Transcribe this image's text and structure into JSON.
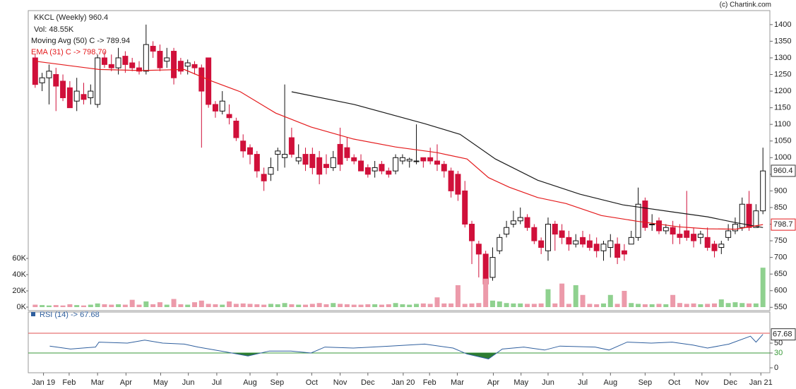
{
  "chart_data": [
    {
      "type": "candlestick",
      "title": "KKCL (Weekly) 960.4",
      "source": "(c) Chartink.com",
      "up_color": "#ffffff",
      "down_color": "#d0103a",
      "open": [
        1300,
        1225,
        1240,
        1250,
        1230,
        1210,
        1170,
        1190,
        1180,
        1160,
        1300,
        1280,
        1270,
        1305,
        1285,
        1270,
        1260,
        1335,
        1320,
        1290,
        1320,
        1290,
        1275,
        1280,
        1270,
        1300,
        1160,
        1140,
        1130,
        1110,
        1050,
        1030,
        1010,
        950,
        950,
        1010,
        1000,
        1060,
        990,
        1010,
        1010,
        1000,
        980,
        970,
        1040,
        1030,
        1000,
        990,
        970,
        960,
        980,
        960,
        960,
        990,
        990,
        990,
        1000,
        1000,
        990,
        980,
        960,
        950,
        900,
        800,
        740,
        710,
        640,
        720,
        770,
        800,
        810,
        820,
        790,
        750,
        720,
        800,
        780,
        760,
        740,
        760,
        750,
        740,
        720,
        730,
        740,
        720,
        740,
        760,
        870,
        800,
        810,
        780,
        790,
        770,
        780,
        770,
        760,
        760,
        740,
        730,
        760,
        780,
        790,
        860,
        790,
        840
      ],
      "high": [
        1310,
        1255,
        1280,
        1270,
        1250,
        1230,
        1240,
        1225,
        1220,
        1310,
        1320,
        1310,
        1330,
        1320,
        1300,
        1290,
        1400,
        1350,
        1340,
        1330,
        1330,
        1300,
        1295,
        1290,
        1280,
        1300,
        1170,
        1200,
        1160,
        1120,
        1070,
        1040,
        1020,
        970,
        1000,
        1030,
        1220,
        1090,
        1040,
        1030,
        1030,
        1020,
        1010,
        1020,
        1090,
        1060,
        1010,
        1010,
        980,
        990,
        990,
        970,
        1010,
        1010,
        1000,
        1100,
        1000,
        1030,
        1040,
        990,
        970,
        960,
        930,
        810,
        750,
        720,
        730,
        770,
        810,
        840,
        850,
        830,
        800,
        760,
        820,
        810,
        800,
        780,
        770,
        780,
        770,
        760,
        750,
        770,
        760,
        740,
        780,
        910,
        880,
        830,
        820,
        800,
        810,
        800,
        900,
        790,
        780,
        790,
        750,
        750,
        800,
        820,
        880,
        900,
        860,
        1030
      ],
      "low": [
        1210,
        1200,
        1160,
        1140,
        1170,
        1150,
        1140,
        1160,
        1160,
        1150,
        1270,
        1260,
        1250,
        1255,
        1260,
        1250,
        1250,
        1300,
        1260,
        1270,
        1220,
        1250,
        1250,
        1250,
        1030,
        1150,
        1120,
        1130,
        1100,
        1050,
        1000,
        980,
        940,
        900,
        930,
        960,
        970,
        1000,
        980,
        960,
        950,
        920,
        950,
        960,
        960,
        990,
        980,
        960,
        940,
        940,
        950,
        940,
        950,
        980,
        970,
        980,
        970,
        980,
        960,
        940,
        880,
        870,
        790,
        680,
        640,
        560,
        630,
        710,
        760,
        790,
        800,
        780,
        740,
        710,
        690,
        720,
        740,
        720,
        730,
        730,
        720,
        700,
        690,
        700,
        680,
        690,
        740,
        750,
        780,
        780,
        770,
        770,
        740,
        740,
        750,
        730,
        740,
        720,
        700,
        710,
        750,
        770,
        780,
        780,
        790,
        830
      ],
      "close": [
        1220,
        1240,
        1260,
        1215,
        1180,
        1150,
        1200,
        1175,
        1200,
        1300,
        1280,
        1270,
        1300,
        1280,
        1270,
        1260,
        1340,
        1320,
        1270,
        1300,
        1240,
        1260,
        1285,
        1270,
        1200,
        1160,
        1140,
        1170,
        1120,
        1060,
        1020,
        1010,
        960,
        930,
        970,
        1020,
        1010,
        1010,
        1000,
        980,
        970,
        950,
        970,
        1000,
        980,
        1000,
        990,
        960,
        950,
        970,
        960,
        950,
        1000,
        1000,
        995,
        990,
        990,
        990,
        980,
        960,
        900,
        890,
        800,
        750,
        710,
        620,
        700,
        760,
        790,
        810,
        820,
        790,
        750,
        730,
        800,
        770,
        760,
        740,
        750,
        740,
        730,
        720,
        740,
        750,
        700,
        710,
        760,
        860,
        790,
        800,
        780,
        790,
        770,
        760,
        760,
        750,
        770,
        730,
        720,
        740,
        780,
        800,
        860,
        790,
        840,
        960
      ],
      "xlim": [
        -1,
        106
      ],
      "ylim": [
        540,
        1440
      ],
      "yticks": [
        550,
        600,
        650,
        700,
        750,
        800,
        850,
        900,
        950,
        1000,
        1050,
        1100,
        1150,
        1200,
        1250,
        1300,
        1350,
        1400
      ],
      "last_value": 960.4,
      "overlays": [
        {
          "name": "Moving Avg (50) C -> 789.94",
          "color": "#1a1a1a",
          "x": [
            37,
            46,
            56.2,
            61.3,
            66.4,
            72.5,
            78.6,
            84.8,
            91.9,
            97,
            101,
            105
          ],
          "values": [
            1198,
            1160,
            1102,
            1070,
            996,
            932,
            890,
            858,
            837,
            822,
            805,
            789.94
          ]
        },
        {
          "name": "EMA (31) C -> 798.70",
          "color": "#e41a1c",
          "last_value": 798.7,
          "x": [
            0,
            9.2,
            15.3,
            21.5,
            25.5,
            29.6,
            34.7,
            39.8,
            45.9,
            52,
            58,
            62.3,
            65.4,
            68.4,
            72.5,
            76.6,
            81.7,
            86.8,
            92.9,
            97,
            101.1,
            105
          ],
          "values": [
            1290,
            1265,
            1262,
            1265,
            1230,
            1198,
            1134,
            1092,
            1056,
            1032,
            1015,
            996,
            940,
            911,
            880,
            862,
            826,
            809,
            792,
            786,
            785,
            798.7
          ]
        }
      ]
    },
    {
      "type": "bar",
      "label": "Vol: 48.55K",
      "up_color": "#8fd18f",
      "down_color": "#ec9aaa",
      "values": [
        3000,
        2500,
        2000,
        2500,
        2000,
        3500,
        2500,
        2000,
        3000,
        4500,
        3500,
        3000,
        3500,
        3000,
        9000,
        3000,
        7000,
        3500,
        6000,
        3000,
        10000,
        3500,
        3000,
        6000,
        8000,
        4000,
        3500,
        3000,
        7000,
        4000,
        4500,
        4000,
        3500,
        3000,
        4000,
        3500,
        5000,
        3500,
        3000,
        3000,
        4000,
        5000,
        3500,
        5000,
        4000,
        3500,
        3000,
        3000,
        3500,
        3500,
        3000,
        3500,
        5000,
        3500,
        3000,
        4000,
        4500,
        4000,
        12000,
        4500,
        4500,
        27000,
        4000,
        4500,
        5000,
        35000,
        8000,
        7000,
        5000,
        4500,
        4500,
        4000,
        4000,
        4500,
        22000,
        4500,
        29000,
        4000,
        27000,
        15000,
        4000,
        3500,
        4500,
        15000,
        4000,
        20000,
        5000,
        4000,
        3500,
        3500,
        4000,
        3500,
        15000,
        5000,
        4000,
        4500,
        3500,
        4000,
        4500,
        9500,
        5000,
        6000,
        5000,
        4500,
        4500,
        48550
      ],
      "ylim": [
        0,
        60000
      ],
      "yticks": [
        {
          "value": 0,
          "label": "0K"
        },
        {
          "value": 20000,
          "label": "20K"
        },
        {
          "value": 40000,
          "label": "40K"
        },
        {
          "value": 60000,
          "label": "60K"
        }
      ]
    },
    {
      "type": "line",
      "series": [
        {
          "name": "RSI (14) -> 67.68",
          "color": "#2f5f9e",
          "x": [
            2.1,
            5.1,
            8.7,
            9.2,
            13.3,
            15.8,
            18.4,
            21.5,
            23.5,
            27.6,
            30.7,
            33.8,
            36.9,
            39.8,
            41.8,
            45.9,
            51.2,
            56.2,
            60.3,
            62.3,
            65.4,
            67.4,
            70.5,
            73.5,
            75.7,
            80.8,
            82.8,
            85.4,
            88.9,
            91.9,
            94.9,
            97,
            100.1,
            103.2,
            104,
            105
          ],
          "values": [
            44,
            38,
            42,
            52,
            50,
            56,
            50,
            48,
            42,
            32,
            24,
            34,
            34,
            30,
            42,
            40,
            44,
            48,
            40,
            28,
            18,
            38,
            42,
            36,
            44,
            42,
            36,
            52,
            50,
            52,
            46,
            40,
            48,
            64,
            52,
            67.68
          ]
        }
      ],
      "levels": [
        {
          "value": 70,
          "color": "#e05050"
        },
        {
          "value": 30,
          "color": "#3a9a3a"
        }
      ],
      "fill_color": "#2e7d32",
      "last_value": 67.68,
      "xlim": [
        -1,
        106
      ],
      "ylim": [
        0,
        100
      ],
      "yticks": [
        0,
        30,
        50
      ],
      "xticks": [
        {
          "value": 1.2,
          "label": "Jan 19"
        },
        {
          "value": 4.9,
          "label": "Feb"
        },
        {
          "value": 9,
          "label": "Mar"
        },
        {
          "value": 13.1,
          "label": "Apr"
        },
        {
          "value": 18.1,
          "label": "May"
        },
        {
          "value": 22.1,
          "label": "Jun"
        },
        {
          "value": 26.2,
          "label": "Jul"
        },
        {
          "value": 31,
          "label": "Aug"
        },
        {
          "value": 34.9,
          "label": "Sep"
        },
        {
          "value": 39.9,
          "label": "Oct"
        },
        {
          "value": 44,
          "label": "Nov"
        },
        {
          "value": 48,
          "label": "Dec"
        },
        {
          "value": 53.1,
          "label": "Jan 20"
        },
        {
          "value": 56.9,
          "label": "Feb"
        },
        {
          "value": 60.9,
          "label": "Mar"
        },
        {
          "value": 66.1,
          "label": "Apr"
        },
        {
          "value": 70.1,
          "label": "May"
        },
        {
          "value": 74,
          "label": "Jun"
        },
        {
          "value": 79,
          "label": "Jul"
        },
        {
          "value": 83,
          "label": "Aug"
        },
        {
          "value": 88,
          "label": "Sep"
        },
        {
          "value": 92.2,
          "label": "Oct"
        },
        {
          "value": 96.2,
          "label": "Nov"
        },
        {
          "value": 100.3,
          "label": "Dec"
        },
        {
          "value": 104.7,
          "label": "Jan 21"
        }
      ]
    }
  ]
}
